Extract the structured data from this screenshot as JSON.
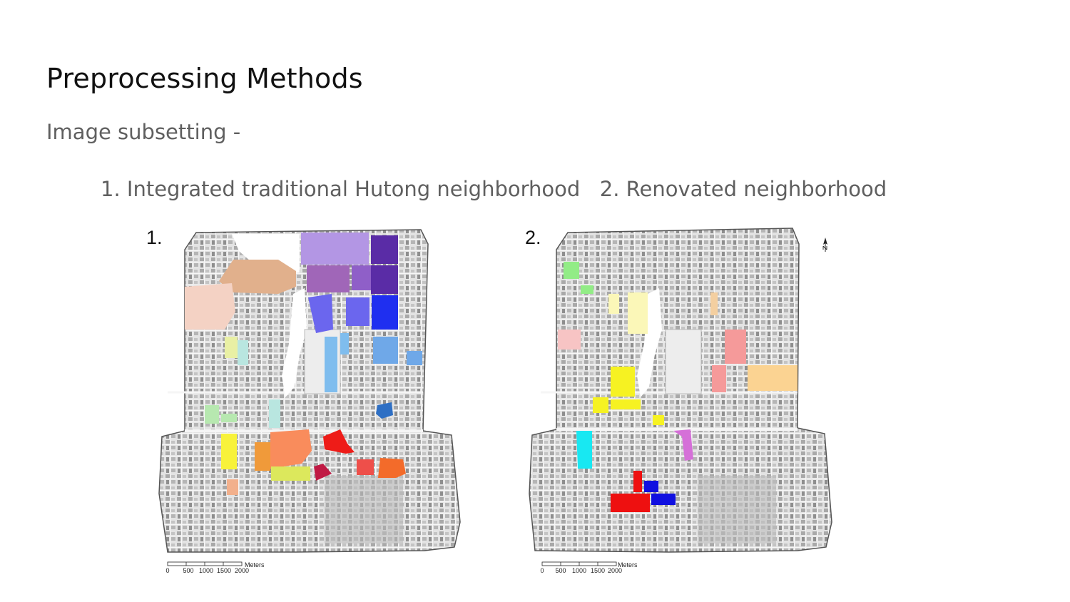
{
  "slide": {
    "title": "Preprocessing Methods",
    "subtitle": "Image subsetting -",
    "items": [
      "1. Integrated traditional Hutong neighborhood",
      "2. Renovated neighborhood"
    ]
  },
  "maps": [
    {
      "label": "1.",
      "scale_ticks": [
        "0",
        "500",
        "1000",
        "1500",
        "2000"
      ],
      "scale_unit": "Meters",
      "region_colors": [
        "#b396e4",
        "#8f5fc8",
        "#5a2ca6",
        "#e1b08c",
        "#f4d2c4",
        "#e9c3b5",
        "#a066b8",
        "#6b66ee",
        "#1f2ff0",
        "#6fa8e8",
        "#7fbdee",
        "#b9e6e0",
        "#e9f0a4",
        "#2e6fc4",
        "#b7e8b0",
        "#f8f23a",
        "#f09a3a",
        "#f98c5c",
        "#dce85c",
        "#c01a44",
        "#ee1c18",
        "#ee4f4a",
        "#f36b2a",
        "#f2b08c"
      ]
    },
    {
      "label": "2.",
      "scale_ticks": [
        "0",
        "500",
        "1000",
        "1500",
        "2000"
      ],
      "scale_unit": "Meters",
      "region_colors": [
        "#92ec86",
        "#fbf7b8",
        "#f4cfa0",
        "#f7c4c4",
        "#f59a9a",
        "#fbd392",
        "#f6f222",
        "#18e8f2",
        "#d570d8",
        "#ee1010",
        "#1010e0"
      ]
    }
  ]
}
